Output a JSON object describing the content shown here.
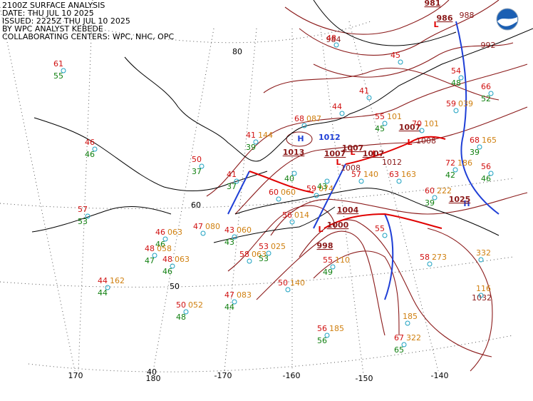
{
  "header": {
    "lines": [
      "2100Z SURFACE ANALYSIS",
      "DATE: THU JUL 10 2025",
      "ISSUED: 2225Z THU JUL 10 2025",
      "BY WPC ANALYST KEBEDE",
      "COLLABORATING CENTERS: WPC, NHC, OPC"
    ]
  },
  "grid_labels": [
    "80",
    "60",
    "50",
    "40",
    "170",
    "180",
    "-170",
    "-160",
    "-150",
    "-140"
  ],
  "pressure_centers": [
    {
      "type": "H",
      "value": "1012"
    },
    {
      "type": "L",
      "value": "1013"
    },
    {
      "type": "L",
      "value": "1007"
    },
    {
      "type": "L",
      "value": "1007"
    },
    {
      "type": "L",
      "value": "1007"
    },
    {
      "type": "L",
      "value": "1007"
    },
    {
      "type": "L",
      "value": "1000"
    },
    {
      "type": "L",
      "value": "998"
    },
    {
      "type": "L",
      "value": "1004"
    },
    {
      "type": "H",
      "value": "1025"
    },
    {
      "type": "L",
      "value": "986"
    },
    {
      "type": "L",
      "value": "981"
    }
  ],
  "isobar_labels": [
    "1008",
    "1008",
    "1012",
    "992",
    "988",
    "984",
    "1032"
  ],
  "stations": [
    {
      "temp": "61",
      "dew": "55"
    },
    {
      "temp": "46",
      "dew": "46"
    },
    {
      "temp": "57",
      "dew": "53"
    },
    {
      "temp": "50",
      "dew": "37"
    },
    {
      "temp": "41",
      "dew": "37"
    },
    {
      "temp": "41",
      "dew": "39",
      "pres": "144"
    },
    {
      "temp": "68",
      "pres": "087"
    },
    {
      "temp": "47",
      "pres": "080"
    },
    {
      "temp": "46",
      "dew": "46",
      "pres": "063"
    },
    {
      "temp": "48",
      "dew": "47",
      "pres": "058"
    },
    {
      "temp": "48",
      "dew": "46",
      "pres": "063"
    },
    {
      "temp": "44",
      "dew": "44",
      "pres": "162"
    },
    {
      "temp": "50",
      "dew": "48",
      "pres": "052"
    },
    {
      "temp": "47",
      "dew": "44",
      "pres": "083"
    },
    {
      "temp": "43",
      "dew": "43",
      "pres": "060"
    },
    {
      "temp": "58",
      "pres": "063"
    },
    {
      "temp": "53",
      "dew": "53",
      "pres": "025"
    },
    {
      "temp": "50",
      "pres": "140"
    },
    {
      "temp": "56",
      "dew": "56",
      "pres": "185"
    },
    {
      "temp": "67",
      "dew": "65",
      "pres": "322"
    },
    {
      "pres": "185"
    },
    {
      "temp": "55",
      "dew": "49",
      "pres": "110"
    },
    {
      "temp": "58",
      "pres": "273"
    },
    {
      "pres": "332"
    },
    {
      "pres": "116"
    },
    {
      "temp": "55",
      "dew": "45",
      "pres": "101"
    },
    {
      "temp": "70",
      "pres": "101"
    },
    {
      "temp": "63",
      "pres": "163"
    },
    {
      "temp": "60",
      "dew": "39",
      "pres": "222"
    },
    {
      "temp": "72",
      "dew": "42",
      "pres": "186"
    },
    {
      "temp": "68",
      "dew": "39",
      "pres": "165"
    },
    {
      "temp": "56",
      "dew": "46"
    },
    {
      "temp": "59",
      "pres": "039"
    },
    {
      "temp": "66",
      "dew": "52"
    },
    {
      "temp": "54",
      "dew": "48"
    },
    {
      "temp": "57",
      "pres": "140"
    },
    {
      "temp": "59",
      "pres": "074"
    },
    {
      "temp": "60",
      "pres": "060"
    },
    {
      "temp": "56",
      "pres": "014"
    },
    {
      "dew": "40"
    },
    {
      "dew": "43"
    },
    {
      "temp": "55"
    },
    {
      "temp": "44"
    },
    {
      "temp": "41"
    },
    {
      "temp": "45"
    },
    {
      "temp": "48"
    }
  ]
}
